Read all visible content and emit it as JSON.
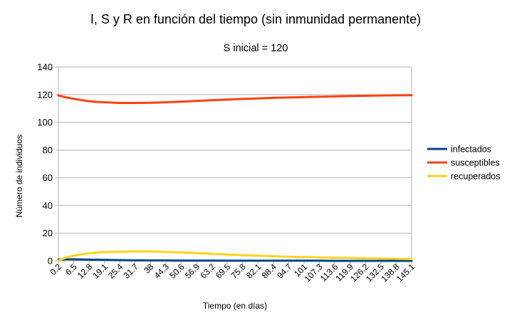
{
  "chart_data": {
    "type": "line",
    "title": "I, S y R en función del tiempo (sin inmunidad permanente)",
    "subtitle": "S inicial = 120",
    "xlabel": "Tiempo (en días)",
    "ylabel": "Número de individuos",
    "ylim": [
      0,
      140
    ],
    "yticks": [
      0,
      20,
      40,
      60,
      80,
      100,
      120,
      140
    ],
    "grid": true,
    "legend_position": "right",
    "xlim": [
      0.2,
      145.1
    ],
    "x_tick_labels": [
      "0.2",
      "6.5",
      "12.8",
      "19.1",
      "25.4",
      "31.7",
      "38",
      "44.3",
      "50.6",
      "56.9",
      "63.2",
      "69.5",
      "75.8",
      "82.1",
      "88.4",
      "94.7",
      "101",
      "107.3",
      "113.6",
      "119.9",
      "126.2",
      "132.5",
      "138.8",
      "145.1"
    ],
    "x": [
      0.2,
      3,
      6.5,
      10,
      12.8,
      16,
      19.1,
      25.4,
      31.7,
      38,
      44.3,
      50.6,
      56.9,
      63.2,
      69.5,
      75.8,
      82.1,
      88.4,
      94.7,
      101,
      107.3,
      113.6,
      119.9,
      126.2,
      132.5,
      138.8,
      145.1
    ],
    "series": [
      {
        "name": "infectados",
        "color": "#004586",
        "values": [
          1,
          1.1,
          1.1,
          1,
          0.9,
          0.8,
          0.7,
          0.5,
          0.4,
          0.3,
          0.3,
          0.2,
          0.2,
          0.2,
          0.1,
          0.1,
          0.1,
          0.1,
          0.1,
          0.1,
          0.1,
          0,
          0,
          0,
          0,
          0,
          0
        ]
      },
      {
        "name": "susceptibles",
        "color": "#ff420e",
        "values": [
          119.5,
          118.2,
          117,
          116,
          115.3,
          114.8,
          114.5,
          114,
          114,
          114.1,
          114.5,
          115,
          115.5,
          116,
          116.5,
          117,
          117.3,
          117.7,
          118,
          118.3,
          118.5,
          118.8,
          119,
          119.2,
          119.4,
          119.5,
          119.6
        ]
      },
      {
        "name": "recuperados",
        "color": "#ffd320",
        "values": [
          0.2,
          2.2,
          3.8,
          4.8,
          5.5,
          6,
          6.3,
          6.6,
          6.8,
          6.8,
          6.5,
          6.1,
          5.6,
          5.1,
          4.6,
          4.1,
          3.7,
          3.3,
          3,
          2.8,
          2.5,
          2.3,
          2.1,
          1.9,
          1.7,
          1.5,
          1.3
        ]
      }
    ]
  }
}
